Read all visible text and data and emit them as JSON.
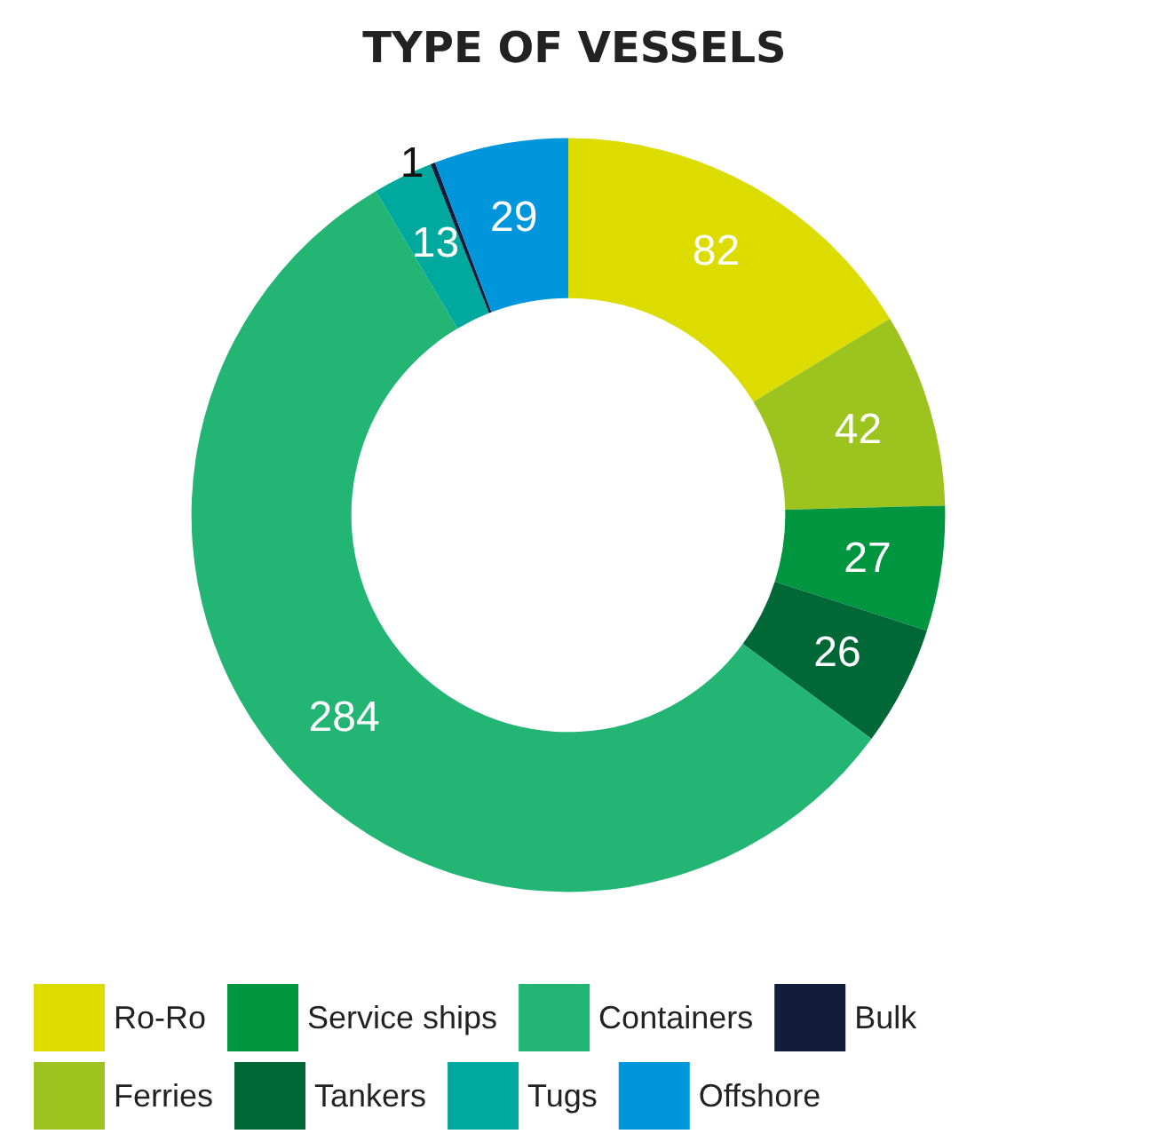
{
  "chart_data": {
    "type": "donut",
    "title": "TYPE OF VESSELS",
    "categories": [
      "Ro-Ro",
      "Ferries",
      "Service ships",
      "Tankers",
      "Containers",
      "Tugs",
      "Bulk",
      "Offshore"
    ],
    "values": [
      82,
      42,
      27,
      26,
      284,
      13,
      1,
      29
    ],
    "colors": [
      "#dcdc00",
      "#9cc31e",
      "#009640",
      "#006837",
      "#22b573",
      "#00a99d",
      "#111d3a",
      "#0096db"
    ],
    "data_labels": true,
    "legend": "bottom"
  }
}
